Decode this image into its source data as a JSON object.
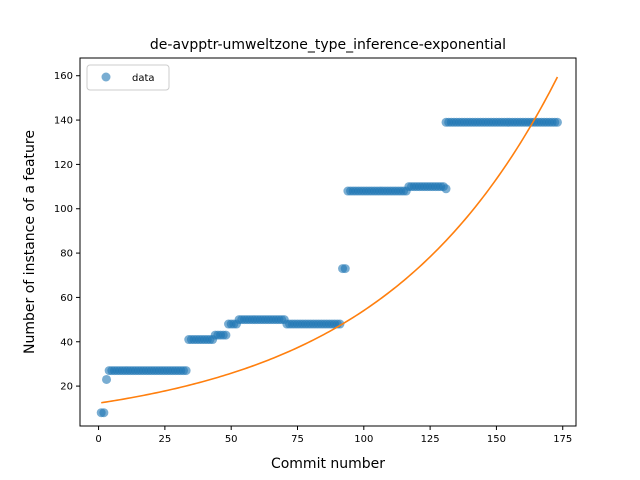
{
  "chart_data": {
    "type": "scatter",
    "title": "de-avpptr-umweltzone_type_inference-exponential",
    "xlabel": "Commit number",
    "ylabel": "Number of instance of a feature",
    "xlim": [
      -7,
      180
    ],
    "ylim": [
      2,
      168
    ],
    "xticks": [
      0,
      25,
      50,
      75,
      100,
      125,
      150,
      175
    ],
    "yticks": [
      20,
      40,
      60,
      80,
      100,
      120,
      140,
      160
    ],
    "legend": {
      "placement": "upper-left",
      "entries": [
        "data"
      ]
    },
    "grid": false,
    "colors": {
      "data": "#1f77b4",
      "fit": "#ff7f0e"
    },
    "series": [
      {
        "name": "data",
        "kind": "scatter",
        "segments": [
          {
            "x_start": 1,
            "x_end": 2,
            "y": 8
          },
          {
            "x_start": 3,
            "x_end": 3,
            "y": 23
          },
          {
            "x_start": 4,
            "x_end": 33,
            "y": 27
          },
          {
            "x_start": 34,
            "x_end": 43,
            "y": 41
          },
          {
            "x_start": 44,
            "x_end": 48,
            "y": 43
          },
          {
            "x_start": 49,
            "x_end": 52,
            "y": 48
          },
          {
            "x_start": 53,
            "x_end": 70,
            "y": 50
          },
          {
            "x_start": 71,
            "x_end": 91,
            "y": 48
          },
          {
            "x_start": 92,
            "x_end": 93,
            "y": 73
          },
          {
            "x_start": 94,
            "x_end": 116,
            "y": 108
          },
          {
            "x_start": 117,
            "x_end": 130,
            "y": 110
          },
          {
            "x_start": 131,
            "x_end": 131,
            "y": 109
          },
          {
            "x_start": 131,
            "x_end": 173,
            "y": 139
          }
        ]
      },
      {
        "kind": "line",
        "model": "exponential",
        "a": 12.3,
        "b": 0.01481,
        "x_range": [
          1,
          173
        ]
      }
    ]
  }
}
